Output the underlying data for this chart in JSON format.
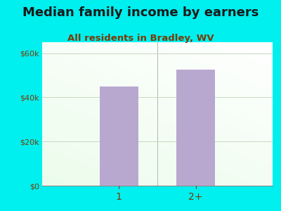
{
  "title": "Median family income by earners",
  "subtitle": "All residents in Bradley, WV",
  "categories": [
    "1",
    "2+"
  ],
  "values": [
    45000,
    52500
  ],
  "bar_color": "#b8a8d0",
  "outer_bg": "#00efef",
  "title_color": "#1a1a1a",
  "subtitle_color": "#7a3a00",
  "tick_label_color": "#7a3a00",
  "ylim": [
    0,
    65000
  ],
  "yticks": [
    0,
    20000,
    40000,
    60000
  ],
  "ytick_labels": [
    "$0",
    "$20k",
    "$40k",
    "$60k"
  ],
  "title_fontsize": 13,
  "subtitle_fontsize": 9.5,
  "grid_color": "#c8d8c0",
  "bar_width": 0.5
}
